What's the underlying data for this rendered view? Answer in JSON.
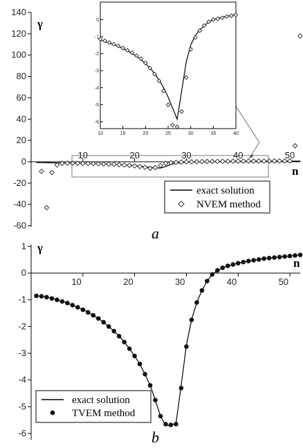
{
  "chart_data": [
    {
      "panel_label": "a",
      "type": "scatter",
      "ylabel": "γ",
      "xlabel": "n",
      "xlim": [
        1,
        52
      ],
      "ylim": [
        -60,
        140
      ],
      "x_ticks": [
        10,
        20,
        30,
        40,
        50
      ],
      "y_ticks": [
        140,
        120,
        100,
        80,
        60,
        40,
        20,
        0,
        -20,
        -40,
        -60
      ],
      "legend": {
        "placement": "bottom-right",
        "entries": [
          "exact solution",
          "NVEM method"
        ]
      },
      "series": [
        {
          "name": "exact solution",
          "style": "line",
          "x": [
            1,
            2,
            3,
            4,
            5,
            6,
            7,
            8,
            9,
            10,
            11,
            12,
            13,
            14,
            15,
            16,
            17,
            18,
            19,
            20,
            21,
            22,
            23,
            24,
            25,
            26,
            27,
            28,
            29,
            30,
            31,
            32,
            33,
            34,
            35,
            36,
            37,
            38,
            39,
            40,
            41,
            42,
            43,
            44,
            45,
            46,
            47,
            48,
            49,
            50,
            51,
            52
          ],
          "y": [
            -0.8,
            -0.85,
            -0.92,
            -0.98,
            -1.05,
            -1.12,
            -1.2,
            -1.28,
            -1.37,
            -1.47,
            -1.58,
            -1.7,
            -1.84,
            -2.0,
            -2.18,
            -2.38,
            -2.62,
            -2.9,
            -3.22,
            -3.6,
            -4.05,
            -4.58,
            -5.2,
            -5.85,
            -5.85,
            -4.5,
            -2.4,
            -1.4,
            -0.85,
            -0.5,
            -0.3,
            -0.15,
            -0.05,
            0.05,
            0.12,
            0.18,
            0.22,
            0.28,
            0.32,
            0.35,
            0.38,
            0.42,
            0.45,
            0.48,
            0.5,
            0.53,
            0.56,
            0.58,
            0.6,
            0.62,
            0.64,
            0.66
          ]
        },
        {
          "name": "NVEM method",
          "style": "diamond",
          "x": [
            2,
            3,
            4,
            5,
            6,
            7,
            8,
            9,
            10,
            11,
            12,
            13,
            14,
            15,
            16,
            17,
            18,
            19,
            20,
            21,
            22,
            23,
            24,
            25,
            26,
            27,
            28,
            29,
            30,
            31,
            32,
            33,
            34,
            35,
            36,
            37,
            38,
            39,
            40,
            41,
            42,
            43,
            44,
            45,
            46,
            47,
            48,
            49,
            50,
            51,
            52
          ],
          "y": [
            -9,
            -43,
            -10,
            -3,
            -1.5,
            -1.2,
            -1.3,
            -1.4,
            -1.5,
            -1.6,
            -1.7,
            -1.85,
            -2.0,
            -2.2,
            -2.4,
            -2.7,
            -3.0,
            -3.4,
            -3.9,
            -4.5,
            -5.2,
            -6.2,
            -5.4,
            -3.5,
            -1.5,
            -0.8,
            -0.5,
            -0.3,
            -0.1,
            0.0,
            0.1,
            0.2,
            0.3,
            0.35,
            0.4,
            0.45,
            0.5,
            0.55,
            0.6,
            0.62,
            0.65,
            0.67,
            0.7,
            0.72,
            0.74,
            0.76,
            0.78,
            0.8,
            0.85,
            15,
            118
          ]
        }
      ],
      "inset": {
        "xlim": [
          10,
          40
        ],
        "ylim": [
          -6.2,
          0.5
        ],
        "x_ticks": [
          10,
          15,
          20,
          25,
          30,
          35,
          40
        ],
        "y_ticks": [
          0,
          -1,
          -2,
          -3,
          -4,
          -5,
          -6
        ],
        "exact_x": [
          10,
          11,
          12,
          13,
          14,
          15,
          16,
          17,
          18,
          19,
          20,
          21,
          22,
          23,
          24,
          25,
          26,
          27,
          28,
          29,
          30,
          31,
          32,
          33,
          34,
          35,
          36,
          37,
          38,
          39,
          40
        ],
        "exact_y": [
          -1.2,
          -1.3,
          -1.38,
          -1.47,
          -1.58,
          -1.7,
          -1.83,
          -1.98,
          -2.15,
          -2.35,
          -2.58,
          -2.85,
          -3.17,
          -3.55,
          -4.0,
          -4.55,
          -5.2,
          -5.85,
          -4.2,
          -2.5,
          -1.5,
          -0.95,
          -0.6,
          -0.35,
          -0.15,
          0.0,
          0.08,
          0.14,
          0.2,
          0.25,
          0.3
        ],
        "nvem_x": [
          10,
          11,
          12,
          13,
          14,
          15,
          16,
          17,
          18,
          19,
          20,
          21,
          22,
          23,
          24,
          25,
          26,
          27,
          28,
          29,
          30,
          31,
          32,
          33,
          34,
          35,
          36,
          37,
          38,
          39,
          40
        ],
        "nvem_y": [
          -1.15,
          -1.25,
          -1.35,
          -1.45,
          -1.55,
          -1.67,
          -1.8,
          -1.95,
          -2.12,
          -2.3,
          -2.55,
          -2.85,
          -3.2,
          -3.6,
          -4.2,
          -5.0,
          -6.2,
          -6.3,
          -5.4,
          -3.4,
          -1.75,
          -1.05,
          -0.65,
          -0.35,
          -0.12,
          0.0,
          0.05,
          0.1,
          0.18,
          0.22,
          0.28
        ]
      }
    },
    {
      "panel_label": "b",
      "type": "scatter",
      "ylabel": "γ",
      "xlabel": "n",
      "xlim": [
        1,
        52
      ],
      "ylim": [
        -6.1,
        1
      ],
      "x_ticks": [
        10,
        20,
        30,
        40,
        50
      ],
      "y_ticks": [
        1,
        0,
        -1,
        -2,
        -3,
        -4,
        -5,
        -6
      ],
      "legend": {
        "placement": "bottom-left",
        "entries": [
          "exact solution",
          "TVEM method"
        ]
      },
      "series": [
        {
          "name": "exact solution",
          "style": "line",
          "x": [
            1,
            2,
            3,
            4,
            5,
            6,
            7,
            8,
            9,
            10,
            11,
            12,
            13,
            14,
            15,
            16,
            17,
            18,
            19,
            20,
            21,
            22,
            23,
            24,
            25,
            26,
            27,
            28,
            29,
            30,
            31,
            32,
            33,
            34,
            35,
            36,
            37,
            38,
            39,
            40,
            41,
            42,
            43,
            44,
            45,
            46,
            47,
            48,
            49,
            50,
            51,
            52
          ],
          "y": [
            -0.85,
            -0.87,
            -0.9,
            -0.95,
            -1.0,
            -1.06,
            -1.12,
            -1.2,
            -1.28,
            -1.37,
            -1.47,
            -1.58,
            -1.7,
            -1.84,
            -2.0,
            -2.17,
            -2.36,
            -2.58,
            -2.83,
            -3.1,
            -3.4,
            -3.78,
            -4.2,
            -4.75,
            -5.35,
            -5.7,
            -5.7,
            -5.6,
            -4.2,
            -2.7,
            -1.75,
            -1.1,
            -0.65,
            -0.3,
            -0.05,
            0.1,
            0.2,
            0.27,
            0.32,
            0.37,
            0.41,
            0.45,
            0.48,
            0.51,
            0.54,
            0.56,
            0.58,
            0.6,
            0.62,
            0.64,
            0.66,
            0.68
          ]
        },
        {
          "name": "TVEM method",
          "style": "dot",
          "x": [
            1,
            2,
            3,
            4,
            5,
            6,
            7,
            8,
            9,
            10,
            11,
            12,
            13,
            14,
            15,
            16,
            17,
            18,
            19,
            20,
            21,
            22,
            23,
            24,
            25,
            26,
            27,
            28,
            29,
            30,
            31,
            32,
            33,
            34,
            35,
            36,
            37,
            38,
            39,
            40,
            41,
            42,
            43,
            44,
            45,
            46,
            47,
            48,
            49,
            50,
            51,
            52
          ],
          "y": [
            -0.85,
            -0.87,
            -0.9,
            -0.95,
            -1.0,
            -1.06,
            -1.12,
            -1.2,
            -1.28,
            -1.37,
            -1.47,
            -1.58,
            -1.7,
            -1.84,
            -2.0,
            -2.17,
            -2.36,
            -2.58,
            -2.83,
            -3.1,
            -3.4,
            -3.78,
            -4.2,
            -4.75,
            -5.35,
            -5.65,
            -5.68,
            -5.65,
            -4.3,
            -2.75,
            -1.75,
            -1.1,
            -0.65,
            -0.3,
            -0.05,
            0.1,
            0.2,
            0.27,
            0.32,
            0.37,
            0.41,
            0.45,
            0.48,
            0.51,
            0.54,
            0.56,
            0.58,
            0.6,
            0.62,
            0.64,
            0.66,
            0.68
          ]
        }
      ]
    }
  ]
}
